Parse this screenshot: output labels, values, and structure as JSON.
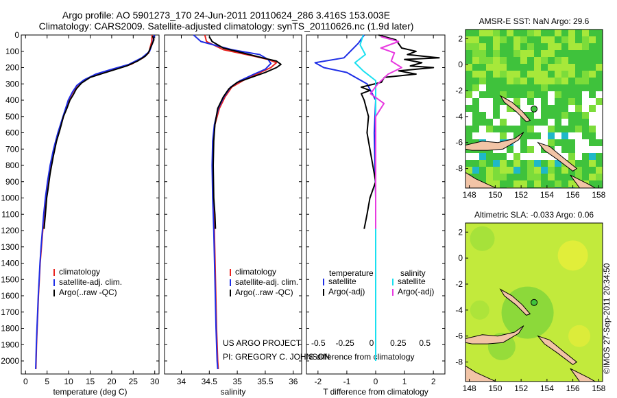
{
  "header": {
    "line1": "Argo profile: AO 5901273_170 24-Jun-2011 20110624_286 3.416S 153.003E",
    "line2": "Climatology: CARS2009. Satellite-adjusted climatology: synTS_20110626.nc (1.9d later)"
  },
  "colors": {
    "climatology": "#e8231f",
    "satellite": "#1e2ee6",
    "argo": "#000000",
    "sal_sat": "#19e0f0",
    "sal_argo": "#e83ae0",
    "land": "#f2c4a6",
    "sst_green": "#3fc23c",
    "sst_yellow": "#a7e83a",
    "sla_bg": "#c2ea3c"
  },
  "chart_data": [
    {
      "type": "line",
      "name": "temperature-profile",
      "xlabel": "temperature (deg C)",
      "ylabel": "",
      "xlim": [
        -1,
        31
      ],
      "ylim": [
        2080,
        0
      ],
      "xticks": [
        "0",
        "5",
        "10",
        "15",
        "20",
        "25",
        "30"
      ],
      "xtick_values": [
        0,
        5,
        10,
        15,
        20,
        25,
        30
      ],
      "yticks": [
        "0",
        "100",
        "200",
        "300",
        "400",
        "500",
        "600",
        "700",
        "800",
        "900",
        "1000",
        "1100",
        "1200",
        "1300",
        "1400",
        "1500",
        "1600",
        "1700",
        "1800",
        "1900",
        "2000"
      ],
      "legend": [
        "climatology",
        "satellite-adj. clim.",
        "Argo(..raw -QC)"
      ],
      "series": [
        {
          "name": "climatology",
          "color_key": "climatology",
          "points": [
            [
              29.4,
              0
            ],
            [
              29.3,
              40
            ],
            [
              28.6,
              110
            ],
            [
              27.3,
              140
            ],
            [
              24.5,
              180
            ],
            [
              20.5,
              210
            ],
            [
              16.5,
              240
            ],
            [
              13.8,
              275
            ],
            [
              12.0,
              310
            ],
            [
              11.0,
              350
            ],
            [
              10.0,
              400
            ],
            [
              8.8,
              500
            ],
            [
              7.6,
              600
            ],
            [
              6.6,
              700
            ],
            [
              5.8,
              800
            ],
            [
              5.2,
              900
            ],
            [
              4.7,
              1000
            ],
            [
              4.3,
              1100
            ],
            [
              4.0,
              1200
            ],
            [
              3.7,
              1300
            ],
            [
              3.4,
              1400
            ],
            [
              3.2,
              1500
            ],
            [
              3.0,
              1600
            ],
            [
              2.85,
              1700
            ],
            [
              2.7,
              1800
            ],
            [
              2.55,
              1900
            ],
            [
              2.45,
              2000
            ],
            [
              2.4,
              2050
            ]
          ]
        },
        {
          "name": "satellite-adj. clim.",
          "color_key": "satellite",
          "points": [
            [
              29.9,
              0
            ],
            [
              29.6,
              40
            ],
            [
              28.8,
              100
            ],
            [
              27.0,
              140
            ],
            [
              24.0,
              180
            ],
            [
              20.0,
              210
            ],
            [
              16.3,
              240
            ],
            [
              13.6,
              275
            ],
            [
              11.9,
              310
            ],
            [
              10.9,
              350
            ],
            [
              9.9,
              400
            ],
            [
              8.7,
              500
            ],
            [
              7.5,
              600
            ],
            [
              6.5,
              700
            ],
            [
              5.7,
              800
            ],
            [
              5.1,
              900
            ],
            [
              4.6,
              1000
            ],
            [
              4.2,
              1100
            ],
            [
              3.9,
              1200
            ],
            [
              3.6,
              1300
            ],
            [
              3.35,
              1400
            ],
            [
              3.15,
              1500
            ],
            [
              2.95,
              1600
            ],
            [
              2.8,
              1700
            ],
            [
              2.65,
              1800
            ],
            [
              2.5,
              1900
            ],
            [
              2.4,
              2000
            ],
            [
              2.35,
              2050
            ]
          ]
        },
        {
          "name": "Argo(..raw -QC)",
          "color_key": "argo",
          "points": [
            [
              29.5,
              5
            ],
            [
              29.8,
              30
            ],
            [
              29.0,
              80
            ],
            [
              28.5,
              110
            ],
            [
              27.8,
              130
            ],
            [
              26.0,
              160
            ],
            [
              23.5,
              190
            ],
            [
              21.0,
              210
            ],
            [
              18.0,
              235
            ],
            [
              15.0,
              260
            ],
            [
              13.0,
              295
            ],
            [
              11.8,
              330
            ],
            [
              11.0,
              370
            ],
            [
              10.3,
              400
            ],
            [
              9.6,
              450
            ],
            [
              8.8,
              500
            ],
            [
              8.0,
              580
            ],
            [
              7.2,
              650
            ],
            [
              6.4,
              750
            ],
            [
              5.7,
              850
            ],
            [
              5.2,
              950
            ],
            [
              4.9,
              1000
            ],
            [
              4.6,
              1100
            ],
            [
              4.3,
              1190
            ]
          ]
        }
      ]
    },
    {
      "type": "line",
      "name": "salinity-profile",
      "xlabel": "salinity",
      "xlim": [
        33.7,
        36.15
      ],
      "ylim": [
        2080,
        0
      ],
      "xticks": [
        "34",
        "34.5",
        "35",
        "35.5",
        "36"
      ],
      "xtick_values": [
        34,
        34.5,
        35,
        35.5,
        36
      ],
      "legend": [
        "climatology",
        "satellite-adj. clim.",
        "Argo(..raw -QC)"
      ],
      "series": [
        {
          "name": "climatology",
          "color_key": "climatology",
          "points": [
            [
              34.42,
              0
            ],
            [
              34.45,
              40
            ],
            [
              34.75,
              90
            ],
            [
              35.3,
              130
            ],
            [
              35.55,
              150
            ],
            [
              35.7,
              170
            ],
            [
              35.6,
              200
            ],
            [
              35.35,
              240
            ],
            [
              35.1,
              280
            ],
            [
              34.9,
              320
            ],
            [
              34.78,
              380
            ],
            [
              34.68,
              450
            ],
            [
              34.6,
              550
            ],
            [
              34.57,
              650
            ],
            [
              34.56,
              800
            ],
            [
              34.57,
              1000
            ],
            [
              34.59,
              1200
            ],
            [
              34.61,
              1500
            ],
            [
              34.63,
              1800
            ],
            [
              34.65,
              2000
            ],
            [
              34.66,
              2050
            ]
          ]
        },
        {
          "name": "satellite-adj. clim.",
          "color_key": "satellite",
          "points": [
            [
              34.22,
              0
            ],
            [
              34.35,
              40
            ],
            [
              34.9,
              90
            ],
            [
              35.4,
              120
            ],
            [
              35.55,
              150
            ],
            [
              35.6,
              175
            ],
            [
              35.5,
              210
            ],
            [
              35.3,
              240
            ],
            [
              35.05,
              280
            ],
            [
              34.88,
              320
            ],
            [
              34.76,
              380
            ],
            [
              34.66,
              450
            ],
            [
              34.59,
              550
            ],
            [
              34.56,
              650
            ],
            [
              34.55,
              800
            ],
            [
              34.56,
              1000
            ],
            [
              34.58,
              1200
            ],
            [
              34.6,
              1500
            ],
            [
              34.62,
              1800
            ],
            [
              34.64,
              2000
            ],
            [
              34.65,
              2050
            ]
          ]
        },
        {
          "name": "Argo(..raw -QC)",
          "color_key": "argo",
          "points": [
            [
              34.5,
              10
            ],
            [
              34.55,
              40
            ],
            [
              34.75,
              80
            ],
            [
              35.1,
              110
            ],
            [
              35.45,
              140
            ],
            [
              35.7,
              160
            ],
            [
              35.78,
              180
            ],
            [
              35.7,
              200
            ],
            [
              35.5,
              230
            ],
            [
              35.25,
              260
            ],
            [
              35.0,
              290
            ],
            [
              34.85,
              330
            ],
            [
              34.75,
              380
            ],
            [
              34.65,
              450
            ],
            [
              34.6,
              550
            ],
            [
              34.58,
              650
            ],
            [
              34.57,
              800
            ],
            [
              34.58,
              1000
            ],
            [
              34.6,
              1100
            ],
            [
              34.61,
              1190
            ]
          ]
        }
      ]
    },
    {
      "type": "line",
      "name": "difference-profile",
      "xlabel": "T difference from climatology",
      "top_label": "S difference from climatology",
      "xlim": [
        -2.4,
        2.4
      ],
      "ylim": [
        2080,
        0
      ],
      "xticks": [
        "-2",
        "-1",
        "0",
        "1",
        "2"
      ],
      "xtick_values": [
        -2,
        -1,
        0,
        1,
        2
      ],
      "top_ticks": [
        "-0.5",
        "-0.25",
        "0",
        "0.25",
        "0.5"
      ],
      "legend": {
        "temperature_header": "temperature",
        "salinity_header": "salinity",
        "temp_sat": "satellite",
        "temp_argo": "Argo(-adj)",
        "sal_sat": "satellite",
        "sal_argo": "Argo(-adj)"
      },
      "series": [
        {
          "name": "T satellite",
          "color_key": "satellite",
          "points": [
            [
              -0.4,
              0
            ],
            [
              -0.6,
              50
            ],
            [
              -1.1,
              140
            ],
            [
              -2.1,
              170
            ],
            [
              -1.8,
              200
            ],
            [
              -1.0,
              230
            ],
            [
              -0.3,
              300
            ],
            [
              0.0,
              400
            ],
            [
              -0.05,
              600
            ],
            [
              0.0,
              1000
            ],
            [
              0.0,
              2000
            ]
          ]
        },
        {
          "name": "T Argo(-adj)",
          "color_key": "argo",
          "points": [
            [
              0.1,
              0
            ],
            [
              0.7,
              30
            ],
            [
              0.9,
              80
            ],
            [
              1.4,
              100
            ],
            [
              1.1,
              120
            ],
            [
              2.2,
              140
            ],
            [
              1.0,
              150
            ],
            [
              1.6,
              170
            ],
            [
              1.2,
              190
            ],
            [
              2.0,
              200
            ],
            [
              0.8,
              220
            ],
            [
              1.4,
              240
            ],
            [
              0.3,
              260
            ],
            [
              0.2,
              290
            ],
            [
              -0.5,
              320
            ],
            [
              -0.2,
              340
            ],
            [
              -0.5,
              360
            ],
            [
              -0.4,
              400
            ],
            [
              -0.25,
              500
            ],
            [
              -0.3,
              600
            ],
            [
              -0.2,
              700
            ],
            [
              -0.1,
              800
            ],
            [
              0.0,
              900
            ],
            [
              -0.2,
              1000
            ],
            [
              -0.3,
              1100
            ],
            [
              -0.4,
              1190
            ]
          ]
        },
        {
          "name": "S satellite",
          "color_key": "sal_sat",
          "points": [
            [
              -0.12,
              0
            ],
            [
              -0.15,
              60
            ],
            [
              -0.1,
              120
            ],
            [
              -0.2,
              170
            ],
            [
              -0.12,
              220
            ],
            [
              0.0,
              280
            ],
            [
              0.0,
              400
            ],
            [
              0.0,
              1000
            ],
            [
              0.0,
              2000
            ]
          ]
        },
        {
          "name": "S Argo(-adj)",
          "color_key": "sal_argo",
          "points": [
            [
              0.05,
              10
            ],
            [
              0.22,
              40
            ],
            [
              0.05,
              80
            ],
            [
              0.18,
              110
            ],
            [
              0.15,
              160
            ],
            [
              0.25,
              200
            ],
            [
              0.12,
              240
            ],
            [
              0.02,
              300
            ],
            [
              -0.05,
              360
            ],
            [
              0.08,
              420
            ],
            [
              0.0,
              500
            ],
            [
              0.0,
              700
            ],
            [
              0.0,
              1000
            ],
            [
              0.0,
              1190
            ]
          ]
        }
      ]
    }
  ],
  "annotations": {
    "project": "US ARGO PROJECT",
    "pi": "PI: GREGORY C. JOHNSON"
  },
  "maps": {
    "sst": {
      "title": "AMSR-E SST: NaN Argo: 29.6",
      "xticks": [
        "148",
        "150",
        "152",
        "154",
        "156",
        "158"
      ],
      "yticks": [
        "2",
        "0",
        "-2",
        "-4",
        "-6",
        "-8"
      ],
      "xlim": [
        147.7,
        158.3
      ],
      "ylim": [
        -9.5,
        2.7
      ]
    },
    "sla": {
      "title": "Altimetric SLA: -0.033 Argo: 0.06",
      "xticks": [
        "148",
        "150",
        "152",
        "154",
        "156",
        "158"
      ],
      "yticks": [
        "2",
        "0",
        "-2",
        "-4",
        "-6",
        "-8"
      ],
      "xlim": [
        147.7,
        158.3
      ],
      "ylim": [
        -9.5,
        2.7
      ]
    },
    "argo_position": [
      153.003,
      -3.416
    ]
  },
  "footer": {
    "timestamp": "©IMOS 27-Sep-2011 20:34:50"
  }
}
